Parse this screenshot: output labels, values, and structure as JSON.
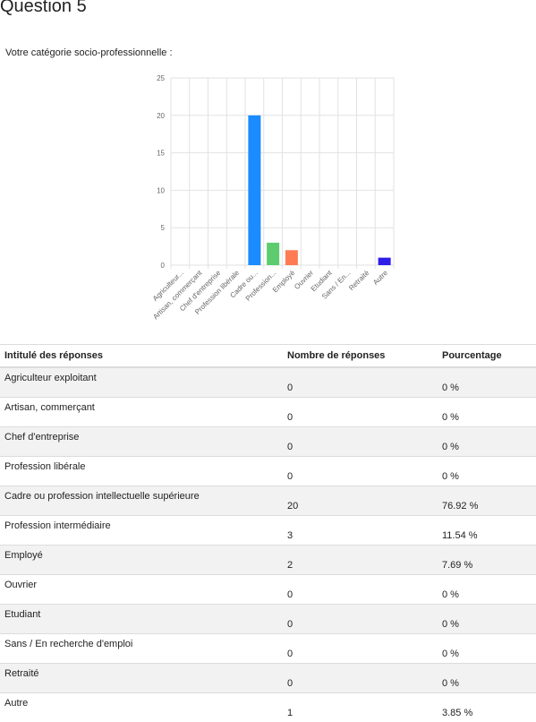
{
  "question": {
    "title": "Question 5",
    "subtitle": "Votre catégorie socio-professionnelle :"
  },
  "chart_data": {
    "type": "bar",
    "categories": [
      "Agriculteur...",
      "Artisan, commerçant",
      "Chef d'entreprise",
      "Profession libérale",
      "Cadre ou...",
      "Profession...",
      "Employé",
      "Ouvrier",
      "Etudiant",
      "Sans / En...",
      "Retraité",
      "Autre"
    ],
    "values": [
      0,
      0,
      0,
      0,
      20,
      3,
      2,
      0,
      0,
      0,
      0,
      1
    ],
    "colors": [
      "#1e88e5",
      "#1e88e5",
      "#1e88e5",
      "#1e88e5",
      "#1a8cff",
      "#5ccc6e",
      "#ff7b54",
      "#1e88e5",
      "#1e88e5",
      "#1e88e5",
      "#1e88e5",
      "#2f1ee8"
    ],
    "ylim": [
      0,
      25
    ],
    "yticks": [
      0,
      5,
      10,
      15,
      20,
      25
    ],
    "grid": true,
    "title": "",
    "xlabel": "",
    "ylabel": ""
  },
  "table": {
    "headers": [
      "Intitulé des réponses",
      "Nombre de réponses",
      "Pourcentage"
    ],
    "rows": [
      [
        "Agriculteur exploitant",
        "0",
        "0 %"
      ],
      [
        "Artisan, commerçant",
        "0",
        "0 %"
      ],
      [
        "Chef d'entreprise",
        "0",
        "0 %"
      ],
      [
        "Profession libérale",
        "0",
        "0 %"
      ],
      [
        "Cadre ou profession intellectuelle supérieure",
        "20",
        "76.92 %"
      ],
      [
        "Profession intermédiaire",
        "3",
        "11.54 %"
      ],
      [
        "Employé",
        "2",
        "7.69 %"
      ],
      [
        "Ouvrier",
        "0",
        "0 %"
      ],
      [
        "Etudiant",
        "0",
        "0 %"
      ],
      [
        "Sans / En recherche d'emploi",
        "0",
        "0 %"
      ],
      [
        "Retraité",
        "0",
        "0 %"
      ],
      [
        "Autre",
        "1",
        "3.85 %"
      ]
    ]
  }
}
